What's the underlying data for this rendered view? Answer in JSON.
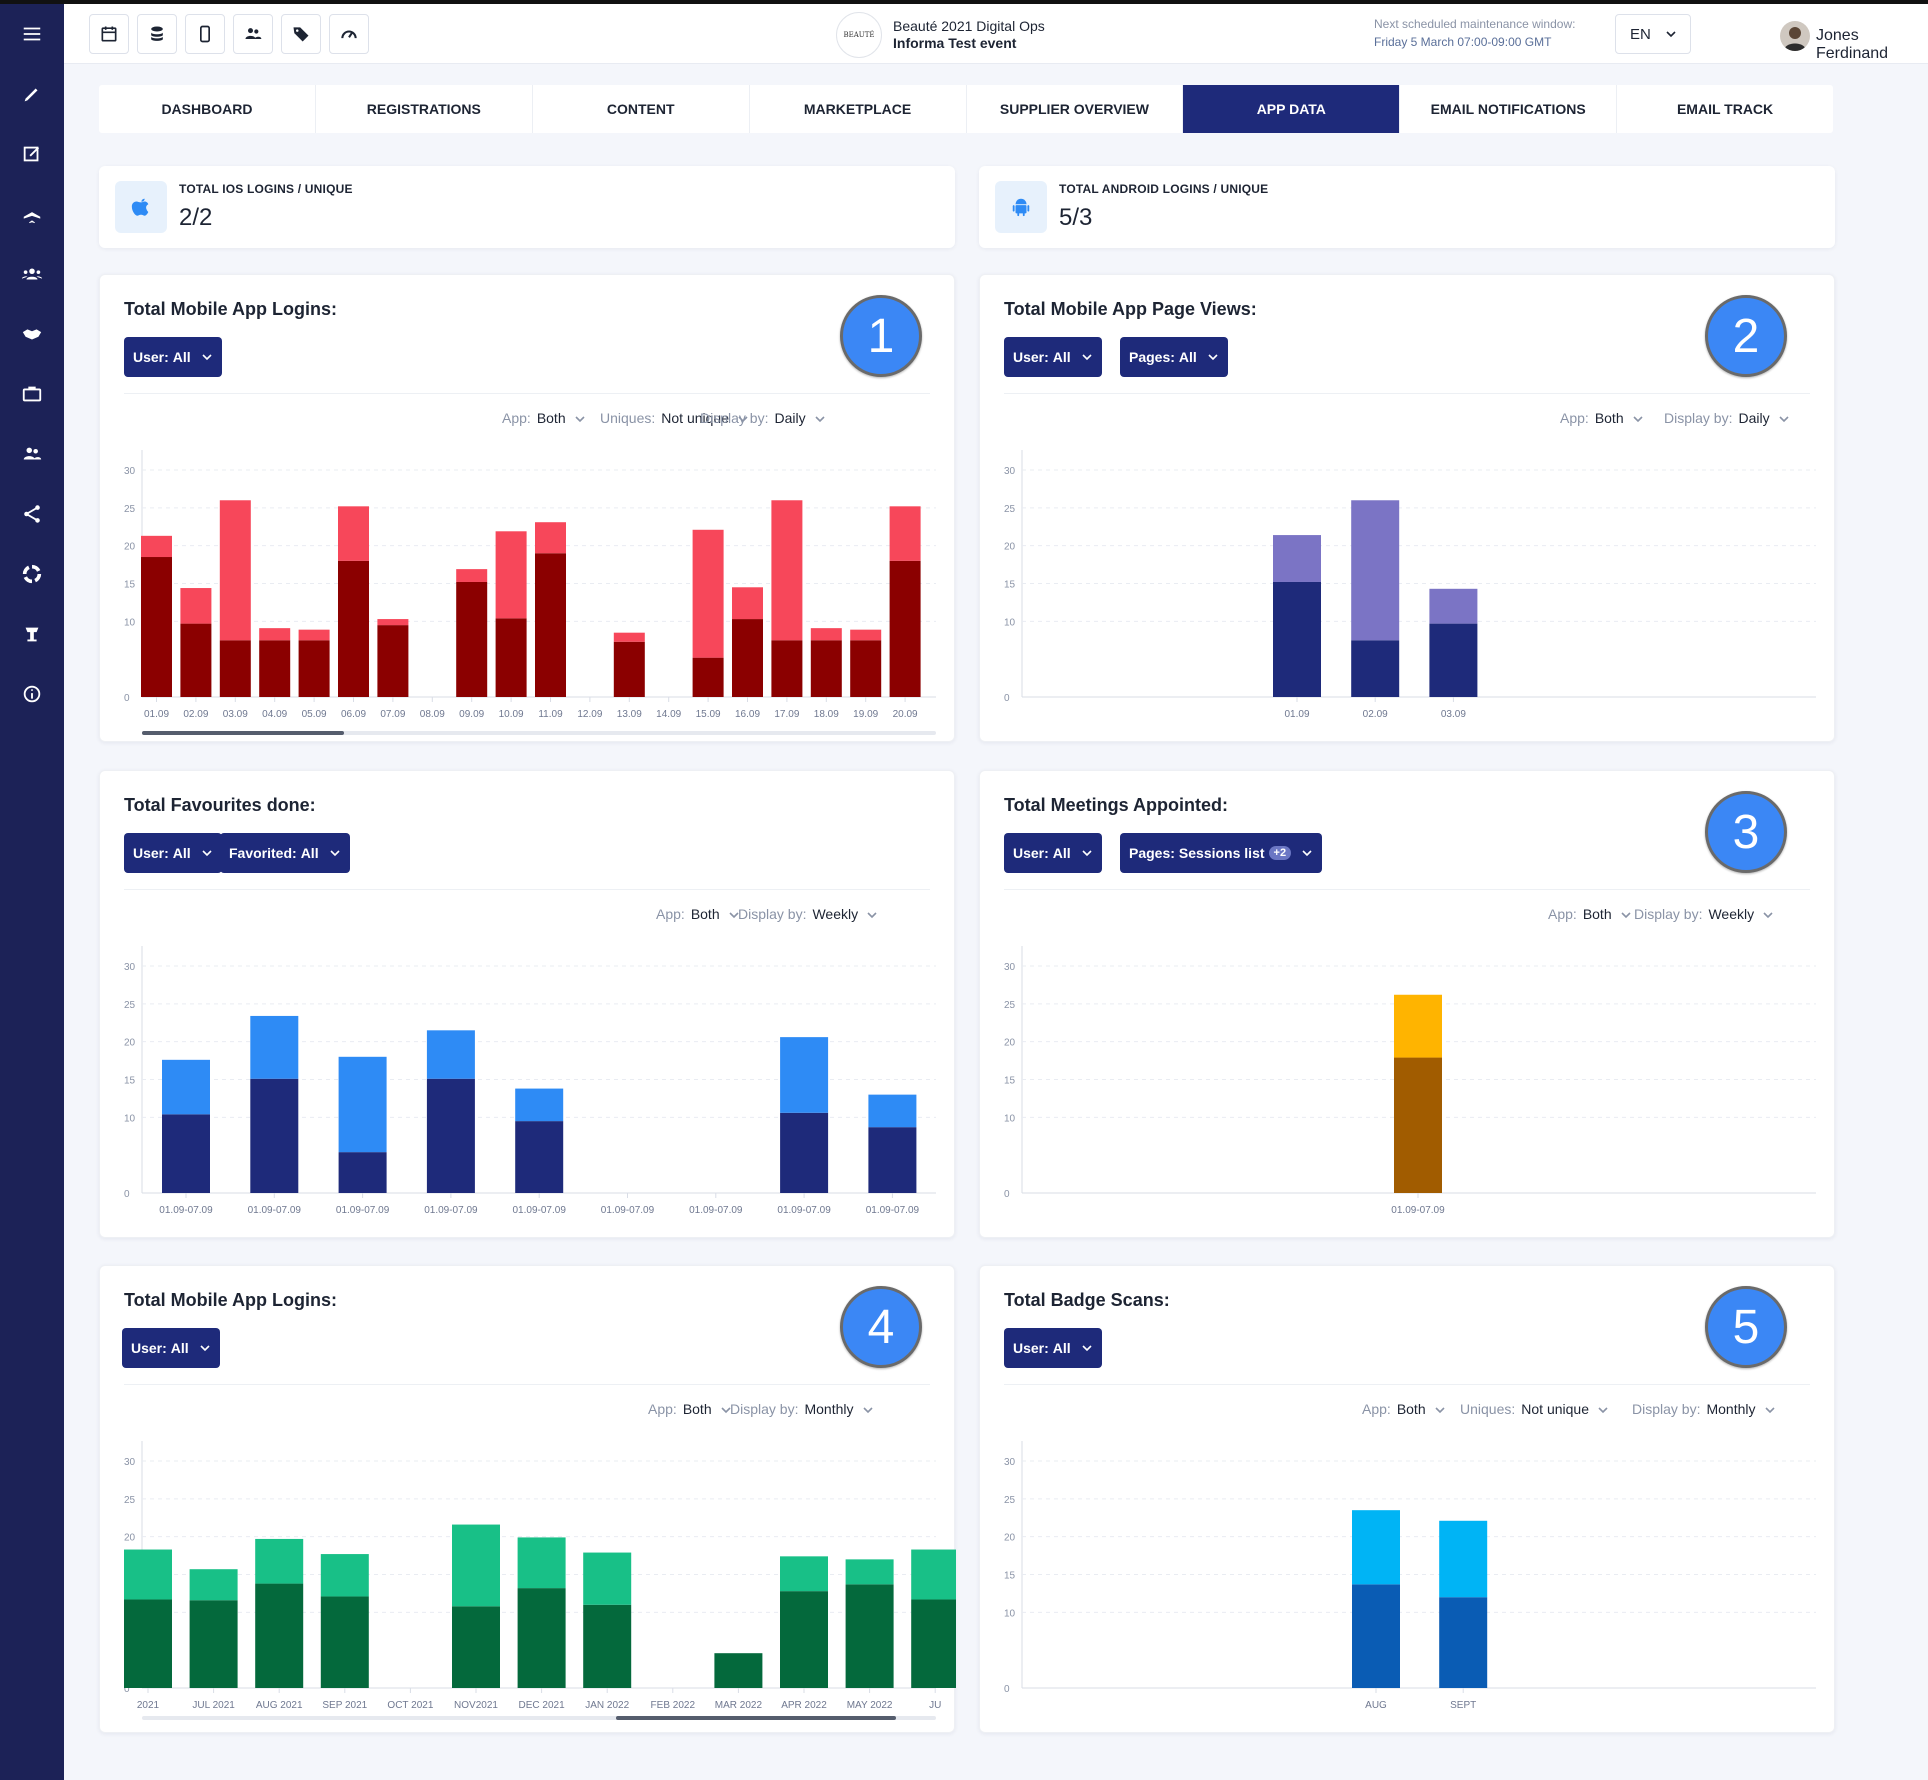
{
  "colors": {
    "sidebar": "#1c2257",
    "accent": "#1e2a7a",
    "annotation": "#3b87f5"
  },
  "sidebar_icons": [
    "menu-icon",
    "pencil-icon",
    "edit-icon",
    "plane-icon",
    "group-icon",
    "handshake-icon",
    "briefcase-icon",
    "users-icon",
    "share-icon",
    "lifebuoy-icon",
    "kiosk-icon",
    "info-icon"
  ],
  "toolbar_icons": [
    "calendar-icon",
    "database-icon",
    "mobile-icon",
    "people-icon",
    "tag-icon",
    "speedometer-icon"
  ],
  "event": {
    "logo_text": "BEAUTÉ",
    "title": "Beauté 2021 Digital Ops",
    "subtitle": "Informa Test event"
  },
  "maintenance": {
    "label": "Next scheduled maintenance window:",
    "value": "Friday 5 March 07:00-09:00 GMT"
  },
  "language": "EN",
  "user": {
    "name": "Jones Ferdinand"
  },
  "tabs": [
    {
      "label": "DASHBOARD"
    },
    {
      "label": "REGISTRATIONS"
    },
    {
      "label": "CONTENT"
    },
    {
      "label": "MARKETPLACE"
    },
    {
      "label": "SUPPLIER OVERVIEW"
    },
    {
      "label": "APP DATA",
      "active": true
    },
    {
      "label": "EMAIL NOTIFICATIONS"
    },
    {
      "label": "EMAIL TRACK"
    }
  ],
  "kpis": [
    {
      "label": "TOTAL IOS LOGINS / UNIQUE",
      "value": "2/2",
      "icon": "apple-icon"
    },
    {
      "label": "TOTAL ANDROID LOGINS / UNIQUE",
      "value": "5/3",
      "icon": "android-icon"
    }
  ],
  "cards": [
    {
      "title": "Total Mobile App Logins:",
      "annotation": "1",
      "pills": [
        {
          "key": "User:",
          "value": "All"
        }
      ],
      "filters": [
        {
          "key": "App:",
          "value": "Both"
        },
        {
          "key": "Uniques:",
          "value": "Not unique"
        },
        {
          "key": "Display by:",
          "value": "Daily"
        }
      ],
      "scrollbar": true
    },
    {
      "title": "Total Mobile App Page Views:",
      "annotation": "2",
      "pills": [
        {
          "key": "User:",
          "value": "All"
        },
        {
          "key": "Pages:",
          "value": "All"
        }
      ],
      "filters": [
        {
          "key": "App:",
          "value": "Both"
        },
        {
          "key": "Display by:",
          "value": "Daily"
        }
      ]
    },
    {
      "title": "Total Favourites done:",
      "annotation": "",
      "pills": [
        {
          "key": "User:",
          "value": "All"
        },
        {
          "key": "Favorited:",
          "value": "All"
        }
      ],
      "filters": [
        {
          "key": "App:",
          "value": "Both"
        },
        {
          "key": "Display by:",
          "value": "Weekly"
        }
      ]
    },
    {
      "title": "Total Meetings Appointed:",
      "annotation": "3",
      "pills": [
        {
          "key": "User:",
          "value": "All"
        },
        {
          "key": "Pages:",
          "value": "Sessions list",
          "badge": "+2"
        }
      ],
      "filters": [
        {
          "key": "App:",
          "value": "Both"
        },
        {
          "key": "Display by:",
          "value": "Weekly"
        }
      ]
    },
    {
      "title": "Total Mobile App Logins:",
      "annotation": "4",
      "pills": [
        {
          "key": "User:",
          "value": "All"
        }
      ],
      "filters": [
        {
          "key": "App:",
          "value": "Both"
        },
        {
          "key": "Display by:",
          "value": "Monthly"
        }
      ],
      "scrollbar": true
    },
    {
      "title": "Total Badge Scans:",
      "annotation": "5",
      "pills": [
        {
          "key": "User:",
          "value": "All"
        }
      ],
      "filters": [
        {
          "key": "App:",
          "value": "Both"
        },
        {
          "key": "Uniques:",
          "value": "Not unique"
        },
        {
          "key": "Display by:",
          "value": "Monthly"
        }
      ]
    }
  ],
  "chart_data": [
    {
      "type": "bar",
      "stacked": true,
      "ylim": [
        0,
        30
      ],
      "yticks": [
        0,
        10,
        15,
        20,
        25,
        30
      ],
      "categories": [
        "01.09",
        "02.09",
        "03.09",
        "04.09",
        "05.09",
        "06.09",
        "07.09",
        "08.09",
        "09.09",
        "10.09",
        "11.09",
        "12.09",
        "13.09",
        "14.09",
        "15.09",
        "16.09",
        "17.09",
        "18.09",
        "19.09",
        "20.09"
      ],
      "colors": [
        "#8b0000",
        "#f7475a"
      ],
      "series": [
        {
          "values": [
            18.5,
            9.7,
            7.5,
            7.5,
            7.5,
            18,
            9.5,
            0,
            15.2,
            10.4,
            19,
            0,
            7.3,
            0,
            5.2,
            10.3,
            7.5,
            7.5,
            7.5,
            18
          ]
        },
        {
          "values": [
            2.8,
            4.7,
            18.5,
            1.6,
            1.4,
            7.2,
            0.8,
            0,
            1.7,
            11.5,
            4.1,
            0,
            1.2,
            0,
            16.9,
            4.2,
            18.5,
            1.6,
            1.4,
            7.2
          ]
        }
      ]
    },
    {
      "type": "bar",
      "stacked": true,
      "ylim": [
        0,
        30
      ],
      "yticks": [
        0,
        10,
        15,
        20,
        25,
        30
      ],
      "categories": [
        "01.09",
        "02.09",
        "03.09"
      ],
      "colors": [
        "#1e2a7a",
        "#7b74c5"
      ],
      "series": [
        {
          "values": [
            15.2,
            7.5,
            9.7
          ]
        },
        {
          "values": [
            6.2,
            18.5,
            4.6
          ]
        }
      ]
    },
    {
      "type": "bar",
      "stacked": true,
      "ylim": [
        0,
        30
      ],
      "yticks": [
        0,
        10,
        15,
        20,
        25,
        30
      ],
      "categories": [
        "01.09-07.09",
        "01.09-07.09",
        "01.09-07.09",
        "01.09-07.09",
        "01.09-07.09",
        "01.09-07.09",
        "01.09-07.09",
        "01.09-07.09",
        "01.09-07.09"
      ],
      "colors": [
        "#1e2a7a",
        "#2e8bf5"
      ],
      "series": [
        {
          "values": [
            10.4,
            15.1,
            5.4,
            15.1,
            9.5,
            0,
            0,
            10.6,
            8.7
          ]
        },
        {
          "values": [
            7.2,
            8.3,
            12.6,
            6.4,
            4.3,
            0,
            0,
            10.0,
            4.3
          ]
        }
      ]
    },
    {
      "type": "bar",
      "stacked": true,
      "ylim": [
        0,
        30
      ],
      "yticks": [
        0,
        10,
        15,
        20,
        25,
        30
      ],
      "categories": [
        "01.09-07.09"
      ],
      "colors": [
        "#a15c00",
        "#ffb400"
      ],
      "series": [
        {
          "values": [
            17.9
          ]
        },
        {
          "values": [
            8.3
          ]
        }
      ]
    },
    {
      "type": "bar",
      "stacked": true,
      "ylim": [
        0,
        30
      ],
      "yticks": [
        0,
        10,
        15,
        20,
        25,
        30
      ],
      "categories": [
        "2021",
        "JUL 2021",
        "AUG 2021",
        "SEP 2021",
        "OCT 2021",
        "NOV2021",
        "DEC 2021",
        "JAN 2022",
        "FEB 2022",
        "MAR 2022",
        "APR 2022",
        "MAY 2022",
        "JU"
      ],
      "colors": [
        "#04693c",
        "#18c087"
      ],
      "series": [
        {
          "values": [
            11.7,
            11.6,
            13.8,
            12.1,
            0,
            10.8,
            13.2,
            11,
            0,
            4.6,
            12.8,
            13.7,
            11.7
          ]
        },
        {
          "values": [
            6.6,
            4.1,
            5.9,
            5.6,
            0,
            10.8,
            6.7,
            6.9,
            0,
            0,
            4.6,
            3.3,
            6.6
          ]
        }
      ]
    },
    {
      "type": "bar",
      "stacked": true,
      "ylim": [
        0,
        30
      ],
      "yticks": [
        0,
        10,
        15,
        20,
        25,
        30
      ],
      "categories": [
        "AUG",
        "SEPT"
      ],
      "colors": [
        "#0a5cb4",
        "#00b4f5"
      ],
      "series": [
        {
          "values": [
            13.7,
            12.0
          ]
        },
        {
          "values": [
            9.8,
            10.1
          ]
        }
      ]
    }
  ]
}
